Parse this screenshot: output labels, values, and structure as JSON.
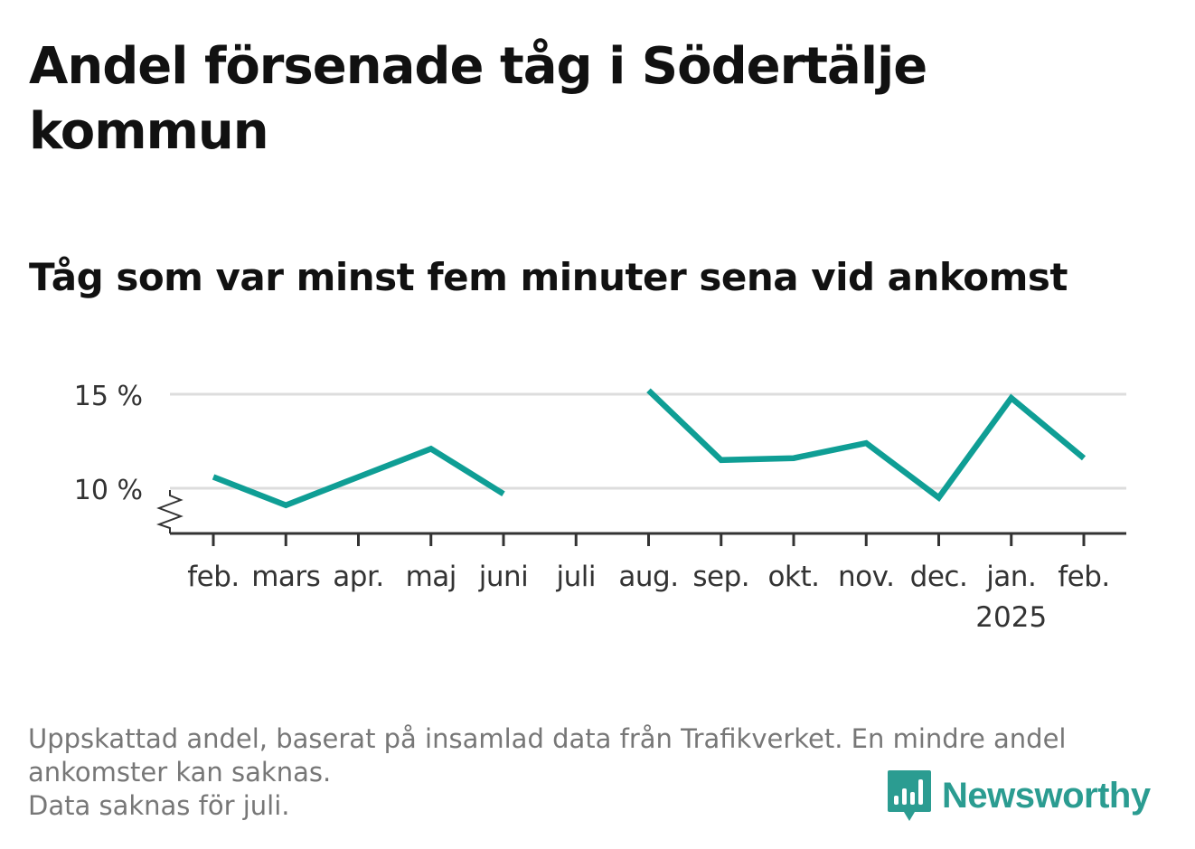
{
  "title": "Andel försenade tåg i Södertälje kommun",
  "subtitle": "Tåg som var minst fem minuter sena vid ankomst",
  "footnote": {
    "line1": "Uppskattad andel, baserat på insamlad data från Trafikverket. En mindre andel",
    "line2": "ankomster kan saknas.",
    "line3": "Data saknas för juli."
  },
  "brand": {
    "name": "Newsworthy",
    "color": "#2b9c91",
    "icon": "bar-chart-speech-bubble-icon"
  },
  "chart_data": {
    "type": "line",
    "title": "Andel försenade tåg i Södertälje kommun",
    "subtitle": "Tåg som var minst fem minuter sena vid ankomst",
    "categories": [
      "feb.",
      "mars",
      "apr.",
      "maj",
      "juni",
      "juli",
      "aug.",
      "sep.",
      "okt.",
      "nov.",
      "dec.",
      "jan.",
      "feb."
    ],
    "year_label": "2025",
    "year_label_under": 11,
    "series": [
      {
        "values": [
          10.6,
          9.1,
          10.6,
          12.1,
          9.7,
          null,
          15.2,
          11.5,
          11.6,
          12.4,
          9.5,
          14.8,
          11.6
        ]
      }
    ],
    "y_ticks": [
      10,
      15
    ],
    "y_tick_labels": [
      "10 %",
      "15 %"
    ],
    "ylim": [
      7.6,
      15.7
    ],
    "axis_break": true,
    "grid": true,
    "colors": {
      "line": "#0f9e95",
      "grid": "#dddddd",
      "axis": "#333333",
      "text": "#333333"
    }
  }
}
